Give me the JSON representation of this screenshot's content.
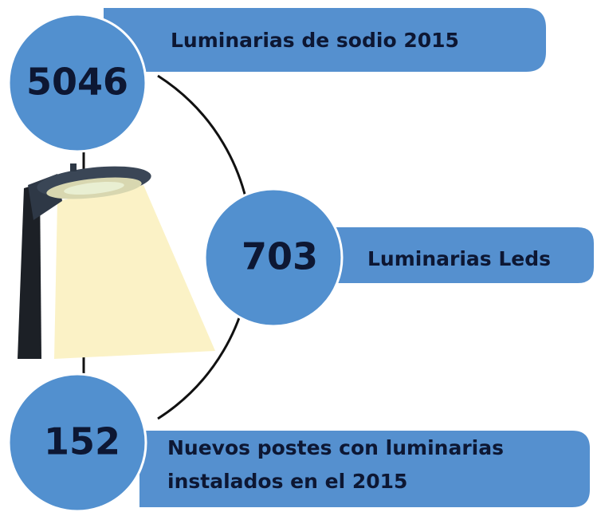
{
  "items": [
    {
      "number": "5046",
      "label": [
        "Luminarias de sodio 2015"
      ]
    },
    {
      "number": "703",
      "label": [
        "Luminarias Leds"
      ]
    },
    {
      "number": "152",
      "label": [
        "Nuevos postes con luminarias",
        "instalados en el 2015"
      ]
    }
  ]
}
